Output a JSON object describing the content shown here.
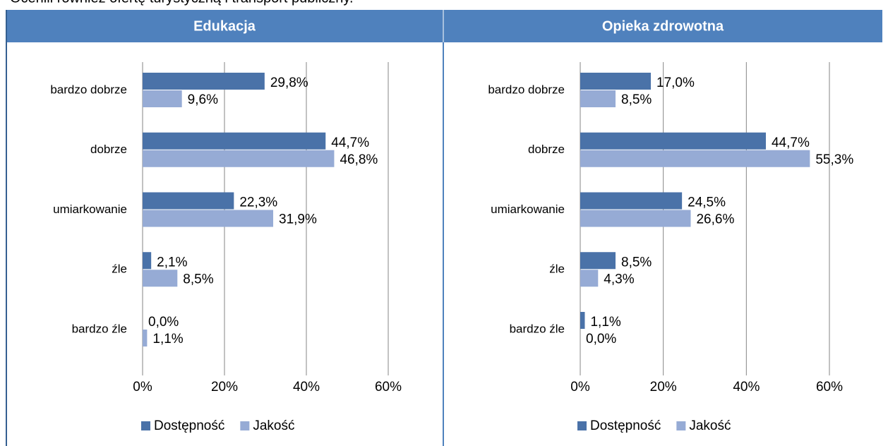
{
  "intro": "Ocenili również ofertę turystyczną i transport publiczny.",
  "chart_data": [
    {
      "type": "bar",
      "orientation": "horizontal",
      "title": "Edukacja",
      "categories": [
        "bardzo dobrze",
        "dobrze",
        "umiarkowanie",
        "źle",
        "bardzo źle"
      ],
      "series": [
        {
          "name": "Dostępność",
          "color": "#4a72a8",
          "values": [
            29.8,
            44.7,
            22.3,
            2.1,
            0.0
          ],
          "value_labels": [
            "29,8%",
            "44,7%",
            "22,3%",
            "2,1%",
            "0,0%"
          ]
        },
        {
          "name": "Jakość",
          "color": "#96abd5",
          "values": [
            9.6,
            46.8,
            31.9,
            8.5,
            1.1
          ],
          "value_labels": [
            "9,6%",
            "46,8%",
            "31,9%",
            "8,5%",
            "1,1%"
          ]
        }
      ],
      "xlim": [
        0,
        60
      ],
      "xticks": [
        {
          "value": 0,
          "label": "0%"
        },
        {
          "value": 20,
          "label": "20%"
        },
        {
          "value": 40,
          "label": "40%"
        },
        {
          "value": 60,
          "label": "60%"
        }
      ],
      "grid": true,
      "legend": "bottom"
    },
    {
      "type": "bar",
      "orientation": "horizontal",
      "title": "Opieka zdrowotna",
      "categories": [
        "bardzo dobrze",
        "dobrze",
        "umiarkowanie",
        "źle",
        "bardzo źle"
      ],
      "series": [
        {
          "name": "Dostępność",
          "color": "#4a72a8",
          "values": [
            17.0,
            44.7,
            24.5,
            8.5,
            1.1
          ],
          "value_labels": [
            "17,0%",
            "44,7%",
            "24,5%",
            "8,5%",
            "1,1%"
          ]
        },
        {
          "name": "Jakość",
          "color": "#96abd5",
          "values": [
            8.5,
            55.3,
            26.6,
            4.3,
            0.0
          ],
          "value_labels": [
            "8,5%",
            "55,3%",
            "26,6%",
            "4,3%",
            "0,0%"
          ]
        }
      ],
      "xlim": [
        0,
        60
      ],
      "xticks": [
        {
          "value": 0,
          "label": "0%"
        },
        {
          "value": 20,
          "label": "20%"
        },
        {
          "value": 40,
          "label": "40%"
        },
        {
          "value": 60,
          "label": "60%"
        }
      ],
      "grid": true,
      "legend": "bottom"
    }
  ]
}
